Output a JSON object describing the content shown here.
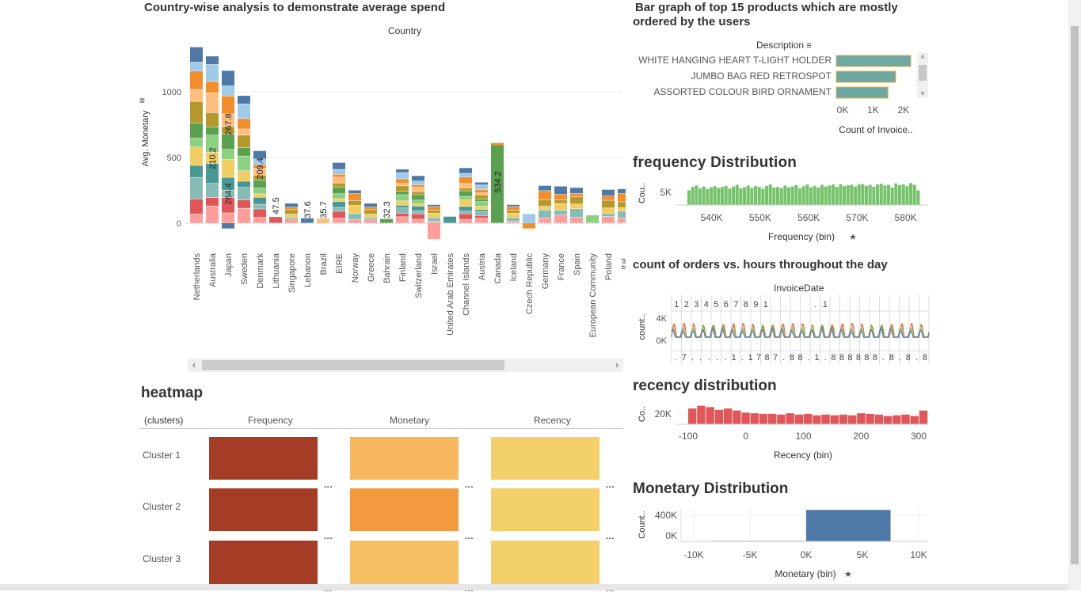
{
  "country_panel": {
    "title": "Country-wise analysis to demonstrate average spend",
    "header": "Country",
    "y_axis_label": "Avg. Monetary",
    "y_ticks": [
      "0",
      "500",
      "1000"
    ]
  },
  "products_panel": {
    "title_line1": "Bar graph of top 15 products which are mostly",
    "title_line2": "ordered by the users",
    "column_header": "Description",
    "x_axis_label": "Count of Invoice..",
    "x_ticks": [
      "0K",
      "1K",
      "2K"
    ]
  },
  "frequency_panel": {
    "title": "frequency Distribution",
    "y_label": "Cou..",
    "y_tick": "5K",
    "x_ticks": [
      "540K",
      "550K",
      "560K",
      "570K",
      "580K"
    ],
    "x_label": "Frequency (bin)"
  },
  "orders_panel": {
    "title": "count of orders vs. hours throughout the day",
    "header": "InvoiceDate",
    "top_labels": [
      "1",
      "2",
      "3",
      "4",
      "5",
      "6",
      "7",
      "8",
      "9",
      "1",
      "",
      "",
      "",
      "",
      ".",
      "1",
      "",
      "",
      "",
      "",
      "",
      "",
      "",
      "",
      "",
      ""
    ],
    "bottom_labels": [
      ".",
      "7",
      ".",
      ".",
      ".",
      ".",
      ".",
      "1",
      ".",
      "1",
      "7",
      "8",
      "7",
      ".",
      "8",
      "8",
      ".",
      "1",
      ".",
      "8",
      "8",
      "8",
      "8",
      "8",
      "8",
      ".",
      "8",
      ".",
      "8",
      ".",
      "8"
    ],
    "y_label": "count..",
    "y_ticks": [
      "4K",
      "0K"
    ]
  },
  "recency_panel": {
    "title": "recency distribution",
    "y_label": "Co..",
    "y_tick": "20K",
    "x_ticks": [
      "-100",
      "0",
      "100",
      "200",
      "300"
    ],
    "x_label": "Recency (bin)"
  },
  "monetary_panel": {
    "title": "Monetary Distribution",
    "y_label": "Count..",
    "y_ticks": [
      "400K",
      "0K"
    ],
    "x_ticks": [
      "-10K",
      "-5K",
      "0K",
      "5K",
      "10K"
    ],
    "x_label": "Monetary (bin)"
  },
  "heatmap": {
    "title": "heatmap",
    "row_header": "(clusters)",
    "columns": [
      "Frequency",
      "Monetary",
      "Recency"
    ],
    "rows": [
      {
        "label": "Cluster 1",
        "colors": [
          "#a53c26",
          "#f7b75e",
          "#f3d06a"
        ]
      },
      {
        "label": "Cluster 2",
        "colors": [
          "#a53c26",
          "#f49a3e",
          "#f3d06a"
        ]
      },
      {
        "label": "Cluster 3",
        "colors": [
          "#a53c26",
          "#f6c062",
          "#f3d06a"
        ]
      }
    ],
    "more_icon": "···"
  },
  "chart_data": [
    {
      "type": "bar",
      "stacked": true,
      "title": "Country-wise analysis to demonstrate average spend",
      "ylabel": "Avg. Monetary",
      "xlabel": "Country",
      "ylim": [
        -130,
        1350
      ],
      "categories": [
        "Netherlands",
        "Australia",
        "Japan",
        "Sweden",
        "Denmark",
        "Lithuania",
        "Singapore",
        "Lebanon",
        "Brazil",
        "EIRE",
        "Norway",
        "Greece",
        "Bahrain",
        "Finland",
        "Switzerland",
        "Israel",
        "United Arab Emirates",
        "Channel Islands",
        "Austria",
        "Canada",
        "Iceland",
        "Czech Republic",
        "Germany",
        "France",
        "Spain",
        "European Community",
        "Poland",
        "Ital.."
      ],
      "totals": [
        1340,
        1270,
        1160,
        970,
        550,
        47.5,
        150,
        37.6,
        35.7,
        460,
        250,
        150,
        32.3,
        410,
        360,
        140,
        50,
        420,
        310,
        610,
        140,
        70,
        285,
        280,
        270,
        60,
        255,
        260
      ],
      "negatives": [
        0,
        0,
        -40,
        0,
        0,
        0,
        0,
        0,
        0,
        0,
        0,
        0,
        0,
        0,
        0,
        -120,
        0,
        0,
        0,
        0,
        0,
        -40,
        0,
        0,
        0,
        0,
        0,
        0
      ],
      "data_labels": [
        {
          "country": "Australia",
          "value": "210.2"
        },
        {
          "country": "Japan",
          "value": "267.8"
        },
        {
          "country": "Japan",
          "value": "264.4"
        },
        {
          "country": "Denmark",
          "value": "209.4"
        },
        {
          "country": "Lithuania",
          "value": "47.5"
        },
        {
          "country": "Lebanon",
          "value": "37.6"
        },
        {
          "country": "Brazil",
          "value": "35.7"
        },
        {
          "country": "Bahrain",
          "value": "32.3"
        },
        {
          "country": "Canada",
          "value": "534.2"
        }
      ],
      "segment_colors": [
        "#ff9d9a",
        "#e15759",
        "#86bcb6",
        "#499894",
        "#f1ce63",
        "#8cd17d",
        "#59a14f",
        "#b6992d",
        "#ffbe7d",
        "#f28e2b",
        "#a0cbe8",
        "#4e79a7"
      ]
    },
    {
      "type": "bar",
      "orientation": "horizontal",
      "title": "Bar graph of top 15 products which are mostly ordered by the users",
      "xlabel": "Count of Invoice..",
      "ylabel": "Description",
      "categories": [
        "WHITE HANGING HEART T-LIGHT HOLDER",
        "JUMBO BAG RED RETROSPOT",
        "ASSORTED COLOUR BIRD ORNAMENT"
      ],
      "values": [
        2450,
        1950,
        1700
      ],
      "xlim": [
        0,
        2500
      ],
      "color": "#6fa8a0"
    },
    {
      "type": "bar",
      "title": "frequency Distribution",
      "xlabel": "Frequency (bin)",
      "ylabel": "Cou..",
      "x_range": [
        535000,
        583000
      ],
      "values": [
        4200,
        5200,
        5600,
        4800,
        5300,
        4600,
        5100,
        5400,
        4900,
        5200,
        5500,
        4700,
        5300,
        5800,
        4800,
        5100,
        5600,
        4900,
        5400,
        5200,
        4700,
        5500,
        5900,
        5000,
        5200,
        4900,
        5600,
        5100,
        5300,
        5700,
        4800,
        5400,
        5900,
        5100,
        5500,
        5000,
        5800,
        5300,
        5600,
        5900,
        5200,
        6000,
        5400,
        5700,
        5800,
        5300,
        5900,
        6000,
        5500,
        5800,
        5200,
        5900,
        6100,
        5600,
        5800,
        5000,
        6200,
        5700,
        5900,
        5400,
        6300,
        5800,
        4200
      ],
      "ylim": [
        0,
        7500
      ],
      "color": "#76c36c"
    },
    {
      "type": "line",
      "title": "count of orders vs. hours throughout the day",
      "ylabel": "count..",
      "ylim": [
        0,
        5000
      ],
      "series_colors": [
        "#e15759",
        "#f28e2b",
        "#59a14f",
        "#f1ce63",
        "#86bcb6",
        "#4e79a7"
      ]
    },
    {
      "type": "bar",
      "title": "recency distribution",
      "xlabel": "Recency (bin)",
      "ylabel": "Co..",
      "x_range": [
        -100,
        300
      ],
      "values": [
        23000,
        27000,
        25000,
        21000,
        23000,
        20000,
        17000,
        16000,
        15000,
        15000,
        14000,
        16000,
        14000,
        15000,
        13000,
        14000,
        13000,
        14000,
        13000,
        16000,
        15000,
        14000,
        12000,
        13000,
        14000,
        12000,
        20000
      ],
      "ylim": [
        0,
        30000
      ],
      "color": "#e15759"
    },
    {
      "type": "bar",
      "title": "Monetary Distribution",
      "xlabel": "Monetary (bin)",
      "ylabel": "Count..",
      "bins": [
        {
          "x0": -15000,
          "x1": 0,
          "value": 0
        },
        {
          "x0": 0,
          "x1": 7500,
          "value": 530000
        }
      ],
      "xlim": [
        -12000,
        11000
      ],
      "ylim": [
        0,
        560000
      ],
      "color": "#4e79a7"
    }
  ]
}
